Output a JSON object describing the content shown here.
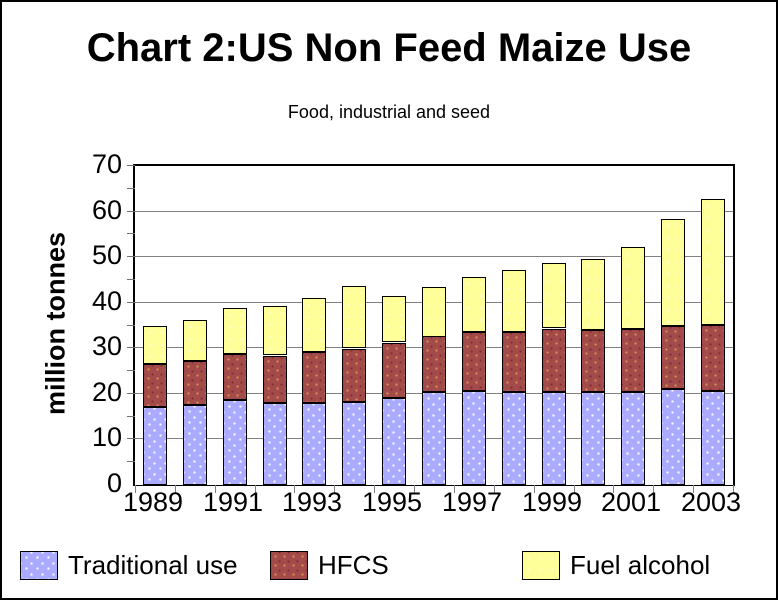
{
  "title": "Chart 2:US Non Feed Maize Use",
  "subtitle": "Food, industrial and seed",
  "chart_data": {
    "type": "bar",
    "stacked": true,
    "title": "Chart 2:US Non Feed Maize Use",
    "subtitle": "Food, industrial and seed",
    "ylabel": "million tonnes",
    "xlabel": "",
    "ylim": [
      0,
      70
    ],
    "y_major_step": 10,
    "y_minor_step": 5,
    "grid": true,
    "legend_position": "bottom",
    "categories": [
      1989,
      1990,
      1991,
      1992,
      1993,
      1994,
      1995,
      1996,
      1997,
      1998,
      1999,
      2000,
      2001,
      2002,
      2003
    ],
    "x_labeled_every": 2,
    "series": [
      {
        "name": "Traditional use",
        "color": "#AAAAFF",
        "pattern": "white-dots",
        "values": [
          17.2,
          17.6,
          18.6,
          18.1,
          18.0,
          18.3,
          19.2,
          20.3,
          20.7,
          20.3,
          20.5,
          20.3,
          20.4,
          21.0,
          20.7
        ]
      },
      {
        "name": "HFCS",
        "color": "#A34A4A",
        "pattern": "tan-dots",
        "values": [
          9.4,
          9.6,
          10.1,
          10.4,
          11.2,
          11.7,
          12.1,
          12.2,
          12.9,
          13.2,
          13.9,
          13.7,
          13.8,
          13.9,
          14.4
        ]
      },
      {
        "name": "Fuel alcohol",
        "color": "#FFFF99",
        "pattern": "faint-dots",
        "values": [
          8.3,
          9.1,
          10.1,
          10.8,
          11.8,
          13.5,
          10.0,
          10.9,
          12.1,
          13.5,
          14.2,
          15.6,
          18.0,
          23.4,
          27.6
        ]
      }
    ],
    "totals": [
      34.9,
      36.3,
      38.8,
      39.3,
      41.0,
      43.5,
      41.3,
      43.4,
      45.7,
      47.0,
      48.6,
      49.6,
      52.2,
      58.3,
      62.7
    ]
  },
  "colors": {
    "background": "#FFFFFF",
    "plot_border": "#000000",
    "gridline": "#808080",
    "text": "#000000"
  }
}
